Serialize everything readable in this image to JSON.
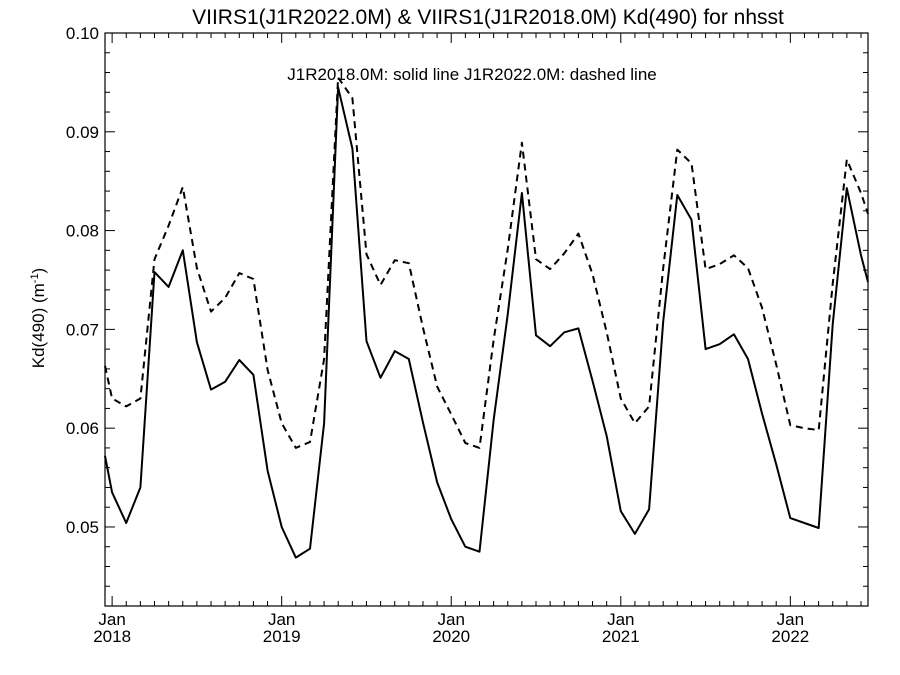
{
  "chart_data": {
    "type": "line",
    "title": "VIIRS1(J1R2022.0M) & VIIRS1(J1R2018.0M)  Kd(490) for nhsst",
    "subtitle": "J1R2018.0M: solid line   J1R2022.0M: dashed line",
    "xlabel": "",
    "ylabel": "Kd(490) (m",
    "ylabel_sup": "-1",
    "ylabel_close": ")",
    "xlim": [
      2017.958,
      2022.458
    ],
    "ylim": [
      0.042,
      0.1
    ],
    "yticks": [
      0.05,
      0.06,
      0.07,
      0.08,
      0.09,
      0.1
    ],
    "ytick_labels": [
      "0.05",
      "0.06",
      "0.07",
      "0.08",
      "0.09",
      "0.10"
    ],
    "xticks": [
      {
        "x": 2018.0,
        "month": "Jan",
        "year": "2018"
      },
      {
        "x": 2019.0,
        "month": "Jan",
        "year": "2019"
      },
      {
        "x": 2020.0,
        "month": "Jan",
        "year": "2020"
      },
      {
        "x": 2021.0,
        "month": "Jan",
        "year": "2021"
      },
      {
        "x": 2022.0,
        "month": "Jan",
        "year": "2022"
      }
    ],
    "x": [
      2017.958,
      2018.0,
      2018.083,
      2018.167,
      2018.25,
      2018.333,
      2018.417,
      2018.5,
      2018.583,
      2018.667,
      2018.75,
      2018.833,
      2018.917,
      2019.0,
      2019.083,
      2019.167,
      2019.25,
      2019.333,
      2019.417,
      2019.5,
      2019.583,
      2019.667,
      2019.75,
      2019.833,
      2019.917,
      2020.0,
      2020.083,
      2020.167,
      2020.25,
      2020.333,
      2020.417,
      2020.5,
      2020.583,
      2020.667,
      2020.75,
      2020.833,
      2020.917,
      2021.0,
      2021.083,
      2021.167,
      2021.25,
      2021.333,
      2021.417,
      2021.5,
      2021.583,
      2021.667,
      2021.75,
      2021.833,
      2021.917,
      2022.0,
      2022.083,
      2022.167,
      2022.25,
      2022.333,
      2022.417,
      2022.458
    ],
    "series": [
      {
        "name": "J1R2018.0M",
        "style": "solid",
        "values": [
          0.0572,
          0.0535,
          0.0504,
          0.054,
          0.0758,
          0.0743,
          0.078,
          0.0687,
          0.0639,
          0.0647,
          0.0669,
          0.0654,
          0.0557,
          0.05,
          0.0469,
          0.0478,
          0.0605,
          0.0945,
          0.0883,
          0.0688,
          0.0651,
          0.0678,
          0.067,
          0.0606,
          0.0545,
          0.0508,
          0.048,
          0.0475,
          0.0608,
          0.0715,
          0.0838,
          0.0694,
          0.0683,
          0.0697,
          0.0701,
          0.0648,
          0.0592,
          0.0516,
          0.0493,
          0.0518,
          0.0708,
          0.0836,
          0.0811,
          0.068,
          0.0685,
          0.0695,
          0.067,
          0.0615,
          0.0563,
          0.0509,
          0.0504,
          0.0499,
          0.0705,
          0.0843,
          0.0775,
          0.0748
        ]
      },
      {
        "name": "J1R2022.0M",
        "style": "dashed",
        "values": [
          0.0663,
          0.063,
          0.0622,
          0.063,
          0.0771,
          0.0805,
          0.0844,
          0.0762,
          0.0718,
          0.0732,
          0.0757,
          0.0751,
          0.0659,
          0.0605,
          0.058,
          0.0586,
          0.067,
          0.0955,
          0.0934,
          0.0776,
          0.0745,
          0.077,
          0.0767,
          0.0702,
          0.0642,
          0.0614,
          0.0585,
          0.058,
          0.0689,
          0.0781,
          0.0889,
          0.0771,
          0.0761,
          0.0777,
          0.0797,
          0.0756,
          0.0697,
          0.063,
          0.0605,
          0.0622,
          0.0762,
          0.0882,
          0.0868,
          0.0761,
          0.0766,
          0.0775,
          0.0762,
          0.0722,
          0.0664,
          0.0603,
          0.06,
          0.0598,
          0.0746,
          0.0872,
          0.0838,
          0.0817
        ]
      }
    ]
  }
}
